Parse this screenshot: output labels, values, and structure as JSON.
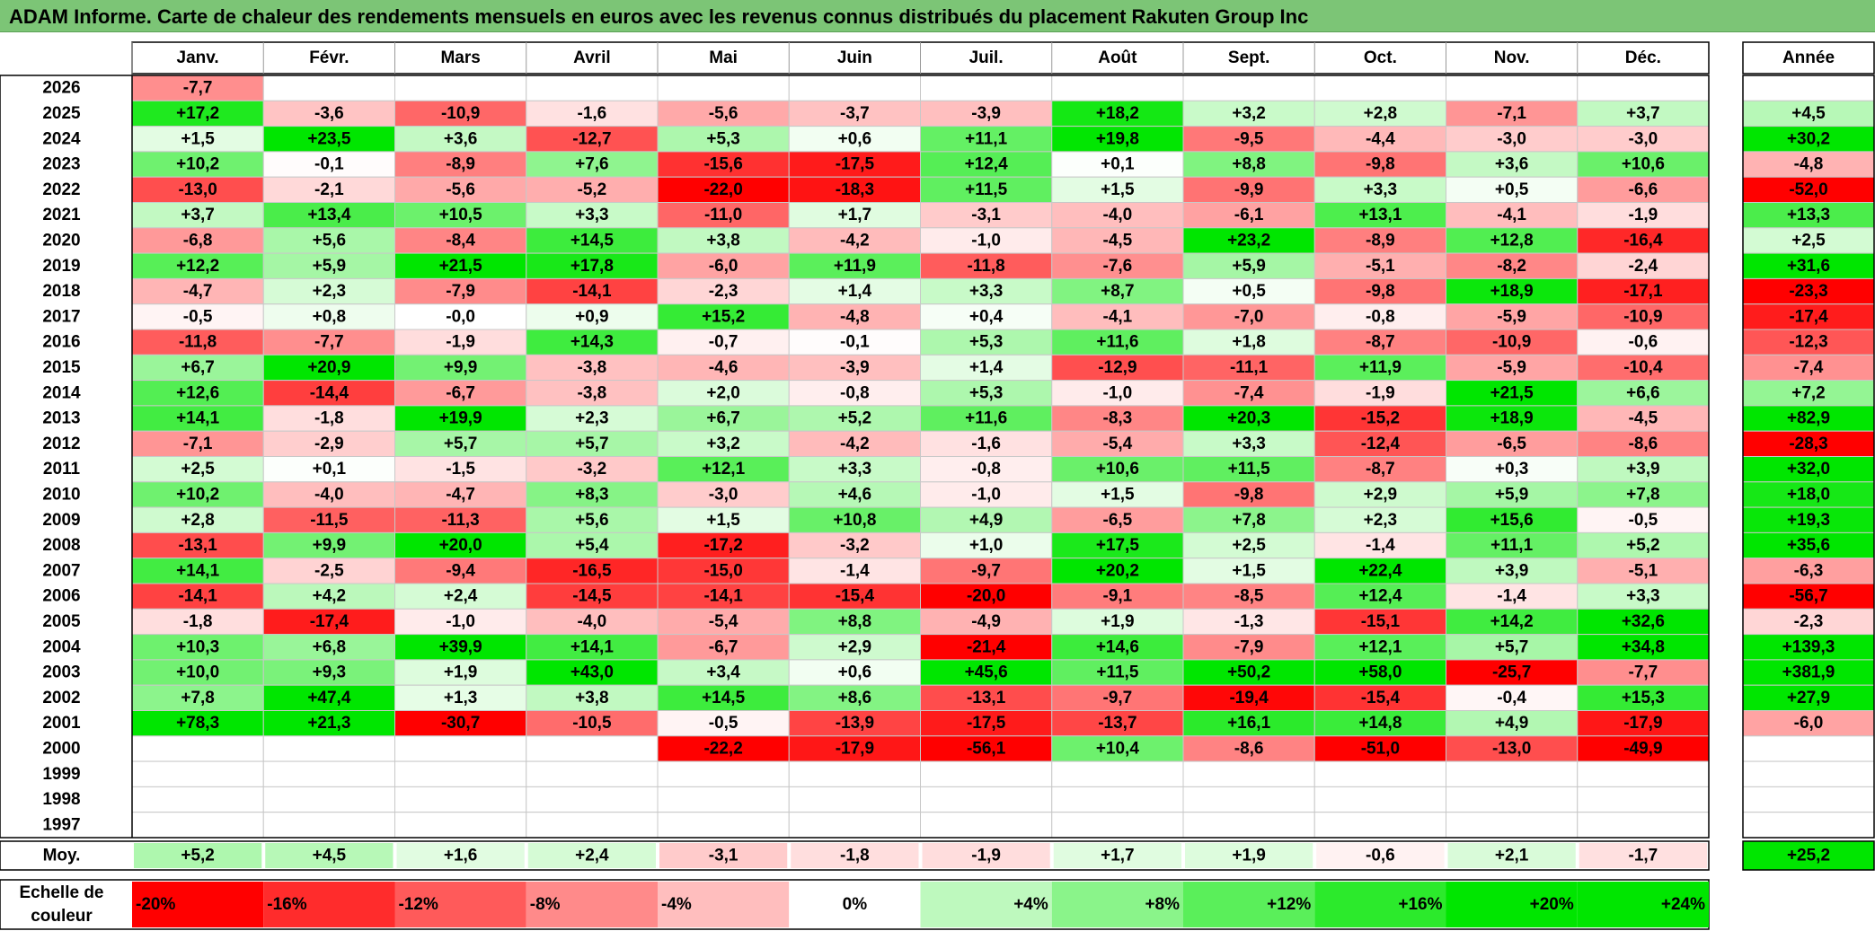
{
  "title": "ADAM Informe. Carte de chaleur des rendements mensuels en euros avec les revenus connus distribués du placement Rakuten Group Inc",
  "colors": {
    "title_bar": "#7cc576",
    "negative_max": "#ff0000",
    "positive_max": "#00e600",
    "neutral": "#ffffff"
  },
  "chart_data": {
    "type": "heatmap",
    "title": "ADAM Informe. Carte de chaleur des rendements mensuels en euros avec les revenus connus distribués du placement Rakuten Group Inc",
    "months": [
      "Janv.",
      "Févr.",
      "Mars",
      "Avril",
      "Mai",
      "Juin",
      "Juil.",
      "Août",
      "Sept.",
      "Oct.",
      "Nov.",
      "Déc."
    ],
    "year_header": "Année",
    "rows": [
      {
        "year": "2026",
        "values": [
          "-7,7",
          "",
          "",
          "",
          "",
          "",
          "",
          "",
          "",
          "",
          "",
          ""
        ],
        "annual": ""
      },
      {
        "year": "2025",
        "values": [
          "+17,2",
          "-3,6",
          "-10,9",
          "-1,6",
          "-5,6",
          "-3,7",
          "-3,9",
          "+18,2",
          "+3,2",
          "+2,8",
          "-7,1",
          "+3,7"
        ],
        "annual": "+4,5"
      },
      {
        "year": "2024",
        "values": [
          "+1,5",
          "+23,5",
          "+3,6",
          "-12,7",
          "+5,3",
          "+0,6",
          "+11,1",
          "+19,8",
          "-9,5",
          "-4,4",
          "-3,0",
          "-3,0"
        ],
        "annual": "+30,2"
      },
      {
        "year": "2023",
        "values": [
          "+10,2",
          "-0,1",
          "-8,9",
          "+7,6",
          "-15,6",
          "-17,5",
          "+12,4",
          "+0,1",
          "+8,8",
          "-9,8",
          "+3,6",
          "+10,6"
        ],
        "annual": "-4,8"
      },
      {
        "year": "2022",
        "values": [
          "-13,0",
          "-2,1",
          "-5,6",
          "-5,2",
          "-22,0",
          "-18,3",
          "+11,5",
          "+1,5",
          "-9,9",
          "+3,3",
          "+0,5",
          "-6,6"
        ],
        "annual": "-52,0"
      },
      {
        "year": "2021",
        "values": [
          "+3,7",
          "+13,4",
          "+10,5",
          "+3,3",
          "-11,0",
          "+1,7",
          "-3,1",
          "-4,0",
          "-6,1",
          "+13,1",
          "-4,1",
          "-1,9"
        ],
        "annual": "+13,3"
      },
      {
        "year": "2020",
        "values": [
          "-6,8",
          "+5,6",
          "-8,4",
          "+14,5",
          "+3,8",
          "-4,2",
          "-1,0",
          "-4,5",
          "+23,2",
          "-8,9",
          "+12,8",
          "-16,4"
        ],
        "annual": "+2,5"
      },
      {
        "year": "2019",
        "values": [
          "+12,2",
          "+5,9",
          "+21,5",
          "+17,8",
          "-6,0",
          "+11,9",
          "-11,8",
          "-7,6",
          "+5,9",
          "-5,1",
          "-8,2",
          "-2,4"
        ],
        "annual": "+31,6"
      },
      {
        "year": "2018",
        "values": [
          "-4,7",
          "+2,3",
          "-7,9",
          "-14,1",
          "-2,3",
          "+1,4",
          "+3,3",
          "+8,7",
          "+0,5",
          "-9,8",
          "+18,9",
          "-17,1"
        ],
        "annual": "-23,3"
      },
      {
        "year": "2017",
        "values": [
          "-0,5",
          "+0,8",
          "-0,0",
          "+0,9",
          "+15,2",
          "-4,8",
          "+0,4",
          "-4,1",
          "-7,0",
          "-0,8",
          "-5,9",
          "-10,9"
        ],
        "annual": "-17,4"
      },
      {
        "year": "2016",
        "values": [
          "-11,8",
          "-7,7",
          "-1,9",
          "+14,3",
          "-0,7",
          "-0,1",
          "+5,3",
          "+11,6",
          "+1,8",
          "-8,7",
          "-10,9",
          "-0,6"
        ],
        "annual": "-12,3"
      },
      {
        "year": "2015",
        "values": [
          "+6,7",
          "+20,9",
          "+9,9",
          "-3,8",
          "-4,6",
          "-3,9",
          "+1,4",
          "-12,9",
          "-11,1",
          "+11,9",
          "-5,9",
          "-10,4"
        ],
        "annual": "-7,4"
      },
      {
        "year": "2014",
        "values": [
          "+12,6",
          "-14,4",
          "-6,7",
          "-3,8",
          "+2,0",
          "-0,8",
          "+5,3",
          "-1,0",
          "-7,4",
          "-1,9",
          "+21,5",
          "+6,6"
        ],
        "annual": "+7,2"
      },
      {
        "year": "2013",
        "values": [
          "+14,1",
          "-1,8",
          "+19,9",
          "+2,3",
          "+6,7",
          "+5,2",
          "+11,6",
          "-8,3",
          "+20,3",
          "-15,2",
          "+18,9",
          "-4,5"
        ],
        "annual": "+82,9"
      },
      {
        "year": "2012",
        "values": [
          "-7,1",
          "-2,9",
          "+5,7",
          "+5,7",
          "+3,2",
          "-4,2",
          "-1,6",
          "-5,4",
          "+3,3",
          "-12,4",
          "-6,5",
          "-8,6"
        ],
        "annual": "-28,3"
      },
      {
        "year": "2011",
        "values": [
          "+2,5",
          "+0,1",
          "-1,5",
          "-3,2",
          "+12,1",
          "+3,3",
          "-0,8",
          "+10,6",
          "+11,5",
          "-8,7",
          "+0,3",
          "+3,9"
        ],
        "annual": "+32,0"
      },
      {
        "year": "2010",
        "values": [
          "+10,2",
          "-4,0",
          "-4,7",
          "+8,3",
          "-3,0",
          "+4,6",
          "-1,0",
          "+1,5",
          "-9,8",
          "+2,9",
          "+5,9",
          "+7,8"
        ],
        "annual": "+18,0"
      },
      {
        "year": "2009",
        "values": [
          "+2,8",
          "-11,5",
          "-11,3",
          "+5,6",
          "+1,5",
          "+10,8",
          "+4,9",
          "-6,5",
          "+7,8",
          "+2,3",
          "+15,6",
          "-0,5"
        ],
        "annual": "+19,3"
      },
      {
        "year": "2008",
        "values": [
          "-13,1",
          "+9,9",
          "+20,0",
          "+5,4",
          "-17,2",
          "-3,2",
          "+1,0",
          "+17,5",
          "+2,5",
          "-1,4",
          "+11,1",
          "+5,2"
        ],
        "annual": "+35,6"
      },
      {
        "year": "2007",
        "values": [
          "+14,1",
          "-2,5",
          "-9,4",
          "-16,5",
          "-15,0",
          "-1,4",
          "-9,7",
          "+20,2",
          "+1,5",
          "+22,4",
          "+3,9",
          "-5,1"
        ],
        "annual": "-6,3"
      },
      {
        "year": "2006",
        "values": [
          "-14,1",
          "+4,2",
          "+2,4",
          "-14,5",
          "-14,1",
          "-15,4",
          "-20,0",
          "-9,1",
          "-8,5",
          "+12,4",
          "-1,4",
          "+3,3"
        ],
        "annual": "-56,7"
      },
      {
        "year": "2005",
        "values": [
          "-1,8",
          "-17,4",
          "-1,0",
          "-4,0",
          "-5,4",
          "+8,8",
          "-4,9",
          "+1,9",
          "-1,3",
          "-15,1",
          "+14,2",
          "+32,6"
        ],
        "annual": "-2,3"
      },
      {
        "year": "2004",
        "values": [
          "+10,3",
          "+6,8",
          "+39,9",
          "+14,1",
          "-6,7",
          "+2,9",
          "-21,4",
          "+14,6",
          "-7,9",
          "+12,1",
          "+5,7",
          "+34,8"
        ],
        "annual": "+139,3"
      },
      {
        "year": "2003",
        "values": [
          "+10,0",
          "+9,3",
          "+1,9",
          "+43,0",
          "+3,4",
          "+0,6",
          "+45,6",
          "+11,5",
          "+50,2",
          "+58,0",
          "-25,7",
          "-7,7"
        ],
        "annual": "+381,9"
      },
      {
        "year": "2002",
        "values": [
          "+7,8",
          "+47,4",
          "+1,3",
          "+3,8",
          "+14,5",
          "+8,6",
          "-13,1",
          "-9,7",
          "-19,4",
          "-15,4",
          "-0,4",
          "+15,3"
        ],
        "annual": "+27,9"
      },
      {
        "year": "2001",
        "values": [
          "+78,3",
          "+21,3",
          "-30,7",
          "-10,5",
          "-0,5",
          "-13,9",
          "-17,5",
          "-13,7",
          "+16,1",
          "+14,8",
          "+4,9",
          "-17,9"
        ],
        "annual": "-6,0"
      },
      {
        "year": "2000",
        "values": [
          "",
          "",
          "",
          "",
          "-22,2",
          "-17,9",
          "-56,1",
          "+10,4",
          "-8,6",
          "-51,0",
          "-13,0",
          "-49,9"
        ],
        "annual": ""
      },
      {
        "year": "1999",
        "values": [
          "",
          "",
          "",
          "",
          "",
          "",
          "",
          "",
          "",
          "",
          "",
          ""
        ],
        "annual": ""
      },
      {
        "year": "1998",
        "values": [
          "",
          "",
          "",
          "",
          "",
          "",
          "",
          "",
          "",
          "",
          "",
          ""
        ],
        "annual": ""
      },
      {
        "year": "1997",
        "values": [
          "",
          "",
          "",
          "",
          "",
          "",
          "",
          "",
          "",
          "",
          "",
          ""
        ],
        "annual": ""
      }
    ],
    "average": {
      "label": "Moy.",
      "values": [
        "+5,2",
        "+4,5",
        "+1,6",
        "+2,4",
        "-3,1",
        "-1,8",
        "-1,9",
        "+1,7",
        "+1,9",
        "-0,6",
        "+2,1",
        "-1,7"
      ],
      "annual": "+25,2"
    },
    "scale": {
      "label_line1": "Echelle de",
      "label_line2": "couleur",
      "steps": [
        {
          "label": "-20%",
          "value": -20
        },
        {
          "label": "-16%",
          "value": -16
        },
        {
          "label": "-12%",
          "value": -12
        },
        {
          "label": "-8%",
          "value": -8
        },
        {
          "label": "-4%",
          "value": -4
        },
        {
          "label": "0%",
          "value": 0
        },
        {
          "label": "+4%",
          "value": 4
        },
        {
          "label": "+8%",
          "value": 8
        },
        {
          "label": "+12%",
          "value": 12
        },
        {
          "label": "+16%",
          "value": 16
        },
        {
          "label": "+20%",
          "value": 20
        },
        {
          "label": "+24%",
          "value": 24
        }
      ]
    }
  }
}
